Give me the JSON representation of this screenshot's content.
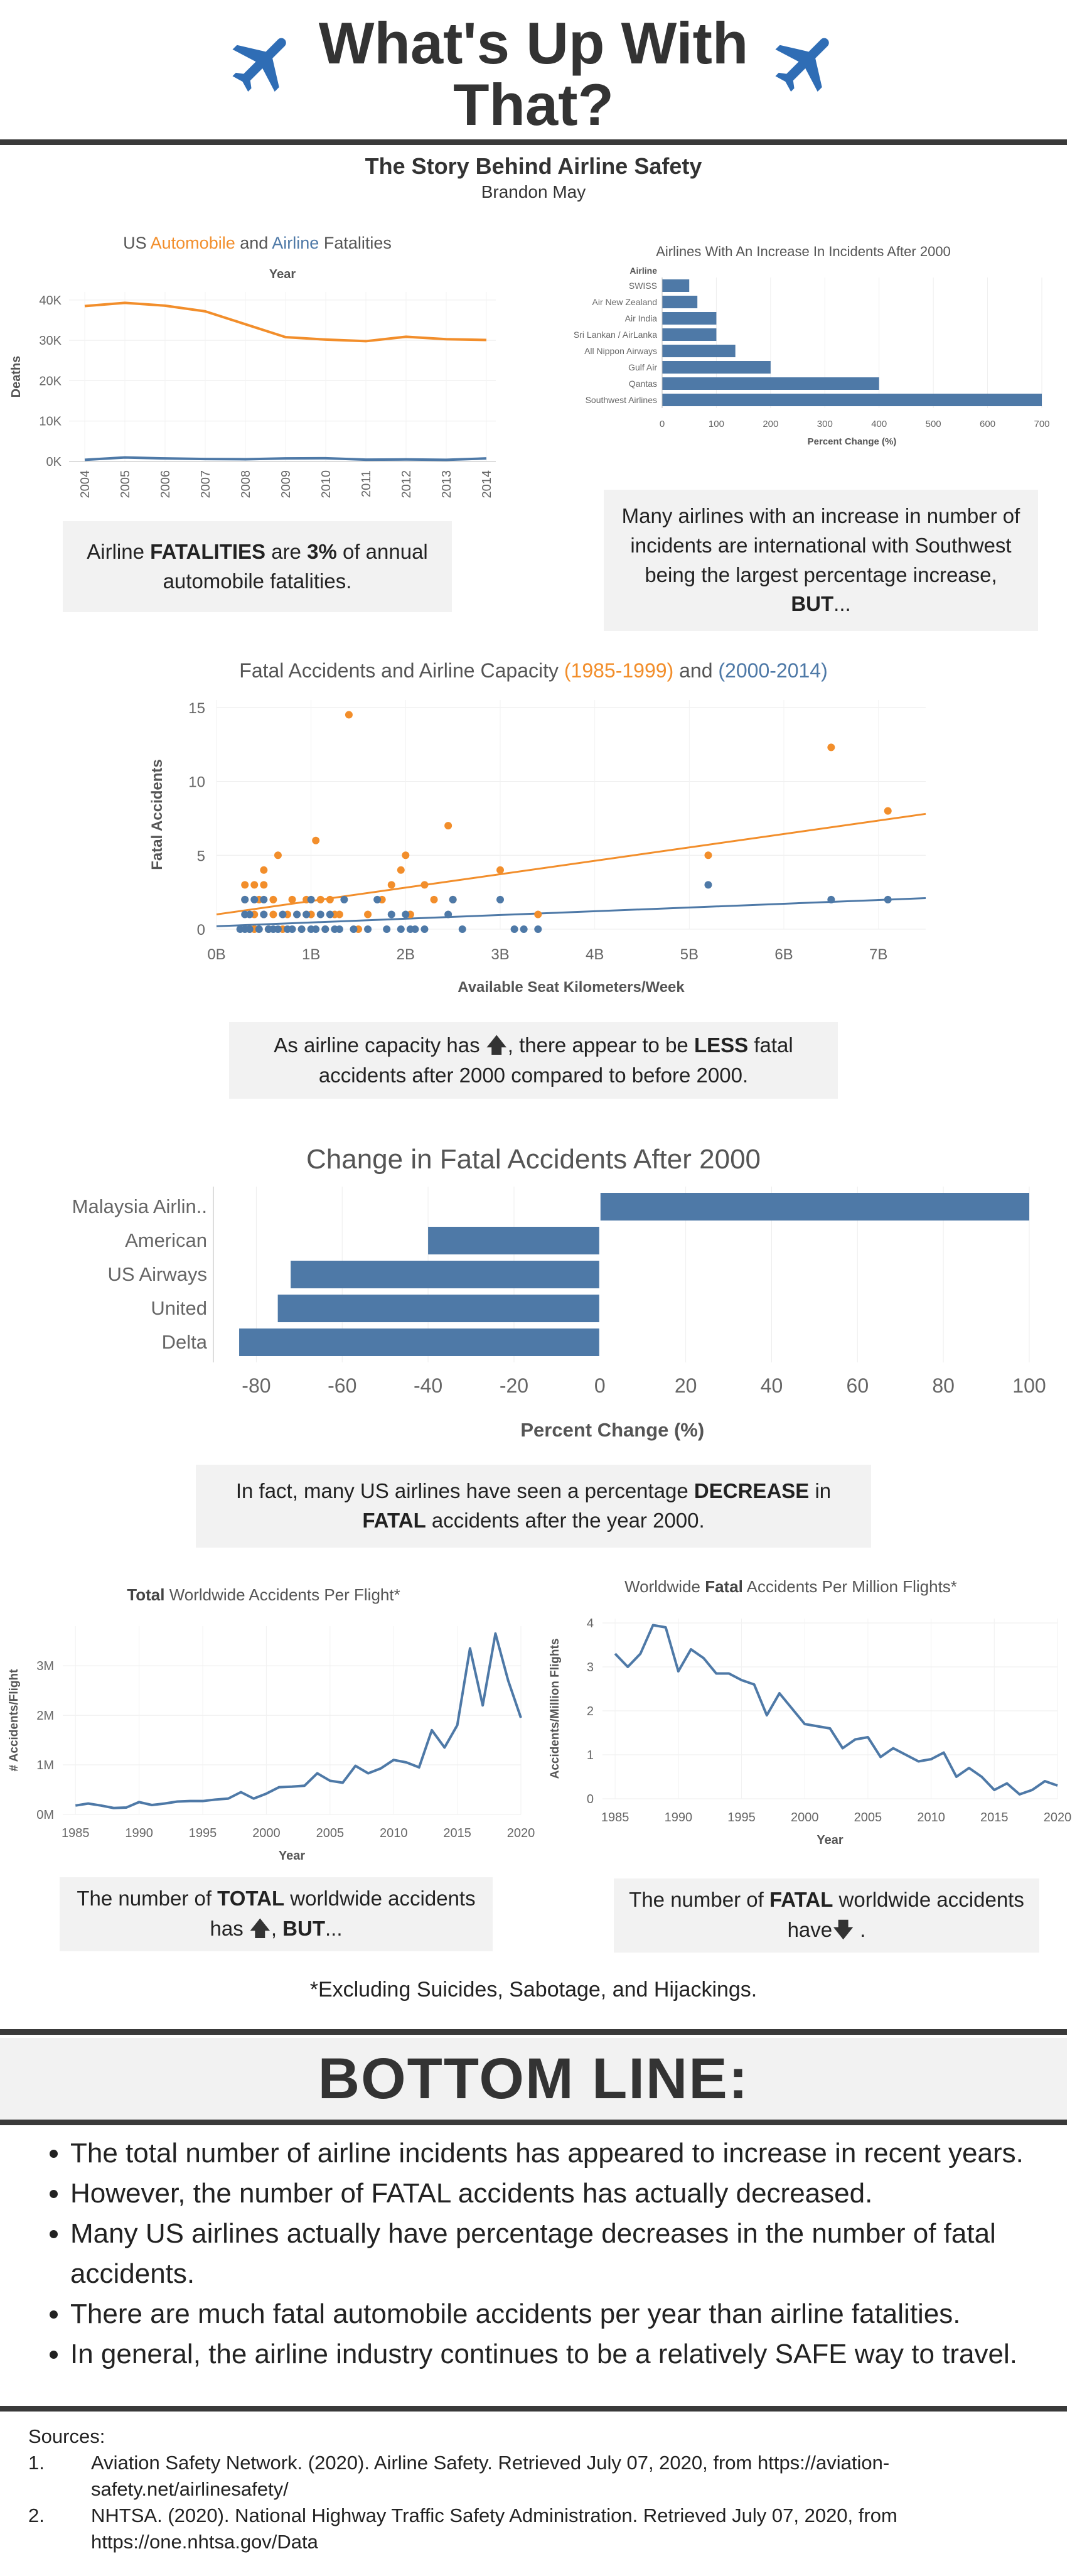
{
  "header": {
    "title": "What's Up With That?",
    "subtitle": "The Story Behind Airline Safety",
    "author": "Brandon May",
    "plane_icon_color": "#2f6db5"
  },
  "colors": {
    "orange": "#f28e2b",
    "blue": "#4e79a7",
    "bar": "#4e79a7",
    "callout_bg": "#f2f2f2"
  },
  "callouts": {
    "c1": {
      "pre": "Airline ",
      "b1": "FATALITIES",
      "mid": " are ",
      "b2": "3%",
      "post": " of annual automobile fatalities."
    },
    "c2": {
      "pre": "Many airlines with an increase in number of incidents are international with Southwest being the largest percentage increase, ",
      "b1": "BUT",
      "post": "..."
    },
    "c3": {
      "pre": "As airline capacity has ",
      "icon": "up-arrow",
      "mid": ", there appear to be ",
      "b1": "LESS",
      "post": " fatal accidents after 2000 compared to before 2000."
    },
    "c4": {
      "pre": "In fact, many US airlines have seen a percentage ",
      "b1": "DECREASE",
      "mid": " in ",
      "b2": "FATAL",
      "post": " accidents after the year 2000."
    },
    "c5": {
      "pre": "The number of ",
      "b1": "TOTAL",
      "mid": " worldwide accidents has ",
      "icon": "up-arrow",
      "mid2": ", ",
      "b2": "BUT",
      "post": "..."
    },
    "c6": {
      "pre": "The number of ",
      "b1": "FATAL",
      "mid": " worldwide accidents have",
      "icon": "down-arrow",
      "post": " ."
    }
  },
  "footnote": "*Excluding Suicides, Sabotage, and Hijackings.",
  "bottom_line": {
    "title": "BOTTOM LINE:",
    "items": [
      "The total number of airline incidents has appeared to increase in recent years.",
      "However, the number of FATAL accidents has actually decreased.",
      "Many US airlines actually have percentage decreases in the number of fatal accidents.",
      "There are much fatal automobile accidents per year than airline fatalities.",
      "In general, the airline industry continues to be a relatively SAFE way to travel."
    ]
  },
  "sources": {
    "label": "Sources:",
    "items": [
      {
        "num": "1.",
        "text": "Aviation Safety Network. (2020). Airline Safety. Retrieved July 07, 2020, from https://aviation-safety.net/airlinesafety/"
      },
      {
        "num": "2.",
        "text": "NHTSA. (2020). National Highway Traffic Safety Administration. Retrieved July 07, 2020, from https://one.nhtsa.gov/Data"
      }
    ]
  },
  "chart_data": [
    {
      "id": "fatalities",
      "type": "line",
      "title_parts": [
        "US ",
        "Automobile",
        " and ",
        "Airline",
        " Fatalities"
      ],
      "xlabel": "Year",
      "ylabel": "Deaths",
      "x": [
        2004,
        2005,
        2006,
        2007,
        2008,
        2009,
        2010,
        2011,
        2012,
        2013,
        2014
      ],
      "xtick_labels": [
        "2004",
        "2005",
        "2006",
        "2007",
        "2008",
        "2009",
        "2010",
        "2011",
        "2012",
        "2013",
        "2014"
      ],
      "ylim": [
        0,
        42000
      ],
      "yticks": [
        0,
        10000,
        20000,
        30000,
        40000
      ],
      "ytick_labels": [
        "0K",
        "10K",
        "20K",
        "30K",
        "40K"
      ],
      "series": [
        {
          "name": "Automobile",
          "color": "#f28e2b",
          "values": [
            38500,
            39300,
            38600,
            37200,
            34000,
            30800,
            30200,
            29800,
            30900,
            30300,
            30100
          ]
        },
        {
          "name": "Airline",
          "color": "#4e79a7",
          "values": [
            400,
            1000,
            750,
            600,
            550,
            750,
            800,
            450,
            500,
            400,
            750
          ]
        }
      ]
    },
    {
      "id": "increase",
      "type": "bar",
      "orientation": "horizontal",
      "title": "Airlines With An Increase In Incidents After 2000",
      "category_header": "Airline",
      "xlabel": "Percent Change (%)",
      "categories": [
        "SWISS",
        "Air New Zealand",
        "Air India",
        "Sri Lankan / AirLanka",
        "All Nippon Airways",
        "Gulf Air",
        "Qantas",
        "Southwest Airlines"
      ],
      "values": [
        50,
        65,
        100,
        100,
        135,
        200,
        400,
        700
      ],
      "xlim": [
        0,
        700
      ],
      "xticks": [
        0,
        100,
        200,
        300,
        400,
        500,
        600,
        700
      ],
      "xtick_labels": [
        "0",
        "100",
        "200",
        "300",
        "400",
        "500",
        "600",
        "700"
      ]
    },
    {
      "id": "capacity",
      "type": "scatter",
      "title_parts": [
        "Fatal Accidents and Airline Capacity ",
        "(1985-1999)",
        " and ",
        "(2000-2014)"
      ],
      "xlabel": "Available Seat Kilometers/Week",
      "ylabel": "Fatal Accidents",
      "xlim": [
        0,
        7.5
      ],
      "ylim": [
        0,
        15.5
      ],
      "xticks": [
        0,
        1,
        2,
        3,
        4,
        5,
        6,
        7
      ],
      "xtick_labels": [
        "0B",
        "1B",
        "2B",
        "3B",
        "4B",
        "5B",
        "6B",
        "7B"
      ],
      "yticks": [
        0,
        5,
        10,
        15
      ],
      "ytick_labels": [
        "0",
        "5",
        "10",
        "15"
      ],
      "series": [
        {
          "name": "(1985-1999)",
          "color": "#f28e2b",
          "points": [
            [
              0.3,
              2
            ],
            [
              0.3,
              3
            ],
            [
              0.35,
              0
            ],
            [
              0.4,
              0
            ],
            [
              0.4,
              1
            ],
            [
              0.4,
              3
            ],
            [
              0.45,
              2
            ],
            [
              0.5,
              1
            ],
            [
              0.5,
              3
            ],
            [
              0.5,
              4
            ],
            [
              0.55,
              0
            ],
            [
              0.6,
              1
            ],
            [
              0.6,
              2
            ],
            [
              0.65,
              5
            ],
            [
              0.7,
              0
            ],
            [
              0.75,
              1
            ],
            [
              0.8,
              2
            ],
            [
              0.85,
              1
            ],
            [
              0.9,
              0
            ],
            [
              0.95,
              2
            ],
            [
              0.95,
              1
            ],
            [
              1.0,
              1
            ],
            [
              1.05,
              6
            ],
            [
              1.1,
              2
            ],
            [
              1.15,
              0
            ],
            [
              1.2,
              2
            ],
            [
              1.25,
              1
            ],
            [
              1.3,
              1
            ],
            [
              1.4,
              14.5
            ],
            [
              1.5,
              0
            ],
            [
              1.6,
              1
            ],
            [
              1.75,
              2
            ],
            [
              1.85,
              3
            ],
            [
              1.95,
              4
            ],
            [
              2.0,
              5
            ],
            [
              2.05,
              1
            ],
            [
              2.2,
              3
            ],
            [
              2.3,
              2
            ],
            [
              2.45,
              7
            ],
            [
              2.5,
              2
            ],
            [
              3.0,
              4
            ],
            [
              3.4,
              1
            ],
            [
              5.2,
              5
            ],
            [
              6.5,
              12.3
            ],
            [
              7.1,
              8
            ]
          ]
        },
        {
          "name": "(2000-2014)",
          "color": "#4e79a7",
          "points": [
            [
              0.25,
              0
            ],
            [
              0.3,
              0
            ],
            [
              0.3,
              1
            ],
            [
              0.3,
              2
            ],
            [
              0.35,
              0
            ],
            [
              0.35,
              1
            ],
            [
              0.4,
              2
            ],
            [
              0.45,
              0
            ],
            [
              0.5,
              1
            ],
            [
              0.5,
              2
            ],
            [
              0.55,
              0
            ],
            [
              0.6,
              0
            ],
            [
              0.65,
              0
            ],
            [
              0.7,
              1
            ],
            [
              0.75,
              0
            ],
            [
              0.8,
              0
            ],
            [
              0.85,
              1
            ],
            [
              0.9,
              0
            ],
            [
              0.95,
              1
            ],
            [
              1.0,
              0
            ],
            [
              1.0,
              2
            ],
            [
              1.05,
              0
            ],
            [
              1.1,
              1
            ],
            [
              1.15,
              0
            ],
            [
              1.2,
              1
            ],
            [
              1.25,
              0
            ],
            [
              1.3,
              0
            ],
            [
              1.35,
              2
            ],
            [
              1.45,
              0
            ],
            [
              1.6,
              0
            ],
            [
              1.7,
              2
            ],
            [
              1.8,
              0
            ],
            [
              1.85,
              1
            ],
            [
              1.95,
              0
            ],
            [
              2.0,
              1
            ],
            [
              2.05,
              0
            ],
            [
              2.1,
              0
            ],
            [
              2.2,
              0
            ],
            [
              2.45,
              1
            ],
            [
              2.5,
              2
            ],
            [
              2.6,
              0
            ],
            [
              3.0,
              2
            ],
            [
              3.15,
              0
            ],
            [
              3.25,
              0
            ],
            [
              3.4,
              0
            ],
            [
              5.2,
              3
            ],
            [
              6.5,
              2
            ],
            [
              7.1,
              2
            ]
          ]
        }
      ],
      "trendlines": [
        {
          "series": "(1985-1999)",
          "color": "#f28e2b",
          "x": [
            0,
            7.5
          ],
          "y": [
            1.0,
            7.8
          ]
        },
        {
          "series": "(2000-2014)",
          "color": "#4e79a7",
          "x": [
            0,
            7.5
          ],
          "y": [
            0.2,
            2.1
          ]
        }
      ]
    },
    {
      "id": "change",
      "type": "bar",
      "orientation": "horizontal",
      "title": "Change in Fatal Accidents After 2000",
      "xlabel": "Percent Change (%)",
      "categories": [
        "Malaysia Airlin..",
        "American",
        "US Airways",
        "United",
        "Delta"
      ],
      "values": [
        100,
        -40,
        -72,
        -75,
        -84
      ],
      "xlim": [
        -90,
        100
      ],
      "xticks": [
        -80,
        -60,
        -40,
        -20,
        0,
        20,
        40,
        60,
        80,
        100
      ],
      "xtick_labels": [
        "-80",
        "-60",
        "-40",
        "-20",
        "0",
        "20",
        "40",
        "60",
        "80",
        "100"
      ]
    },
    {
      "id": "total",
      "type": "line",
      "title_parts": [
        "Total",
        " Worldwide Accidents Per Flight*"
      ],
      "xlabel": "Year",
      "ylabel": "# Accidents/Flight",
      "xlim": [
        1984,
        2020
      ],
      "ylim": [
        0,
        3800000
      ],
      "xticks": [
        1985,
        1990,
        1995,
        2000,
        2005,
        2010,
        2015,
        2020
      ],
      "xtick_labels": [
        "1985",
        "1990",
        "1995",
        "2000",
        "2005",
        "2010",
        "2015",
        "2020"
      ],
      "yticks": [
        0,
        1000000,
        2000000,
        3000000
      ],
      "ytick_labels": [
        "0M",
        "1M",
        "2M",
        "3M"
      ],
      "series": [
        {
          "name": "",
          "color": "#4e79a7",
          "x": [
            1985,
            1986,
            1987,
            1988,
            1989,
            1990,
            1991,
            1992,
            1993,
            1994,
            1995,
            1996,
            1997,
            1998,
            1999,
            2000,
            2001,
            2002,
            2003,
            2004,
            2005,
            2006,
            2007,
            2008,
            2009,
            2010,
            2011,
            2012,
            2013,
            2014,
            2015,
            2016,
            2017,
            2018,
            2019,
            2020
          ],
          "values": [
            180000,
            220000,
            180000,
            130000,
            140000,
            250000,
            190000,
            220000,
            260000,
            270000,
            270000,
            300000,
            320000,
            450000,
            320000,
            420000,
            550000,
            560000,
            580000,
            830000,
            680000,
            640000,
            980000,
            830000,
            930000,
            1100000,
            1050000,
            950000,
            1700000,
            1350000,
            1800000,
            3350000,
            2200000,
            3650000,
            2700000,
            1950000
          ]
        }
      ]
    },
    {
      "id": "fatal",
      "type": "line",
      "title_parts": [
        "Worldwide ",
        "Fatal",
        " Accidents Per Million Flights*"
      ],
      "xlabel": "Year",
      "ylabel": "Accidents/Million Flights",
      "xlim": [
        1984,
        2020
      ],
      "ylim": [
        0,
        4.1
      ],
      "xticks": [
        1985,
        1990,
        1995,
        2000,
        2005,
        2010,
        2015,
        2020
      ],
      "xtick_labels": [
        "1985",
        "1990",
        "1995",
        "2000",
        "2005",
        "2010",
        "2015",
        "2020"
      ],
      "yticks": [
        0,
        1,
        2,
        3,
        4
      ],
      "ytick_labels": [
        "0",
        "1",
        "2",
        "3",
        "4"
      ],
      "series": [
        {
          "name": "",
          "color": "#4e79a7",
          "x": [
            1985,
            1986,
            1987,
            1988,
            1989,
            1990,
            1991,
            1992,
            1993,
            1994,
            1995,
            1996,
            1997,
            1998,
            1999,
            2000,
            2001,
            2002,
            2003,
            2004,
            2005,
            2006,
            2007,
            2008,
            2009,
            2010,
            2011,
            2012,
            2013,
            2014,
            2015,
            2016,
            2017,
            2018,
            2019,
            2020
          ],
          "values": [
            3.3,
            3.0,
            3.3,
            3.95,
            3.9,
            2.9,
            3.4,
            3.2,
            2.85,
            2.85,
            2.7,
            2.6,
            1.9,
            2.4,
            2.05,
            1.7,
            1.65,
            1.6,
            1.15,
            1.35,
            1.4,
            0.95,
            1.15,
            1.0,
            0.85,
            0.9,
            1.05,
            0.5,
            0.7,
            0.5,
            0.2,
            0.35,
            0.1,
            0.2,
            0.4,
            0.3
          ]
        }
      ]
    }
  ]
}
